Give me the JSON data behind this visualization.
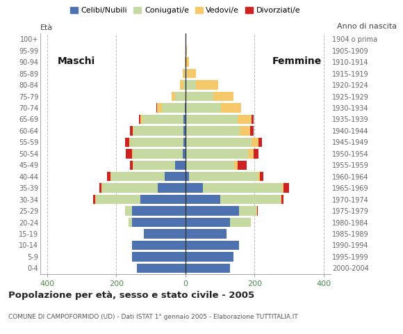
{
  "age_groups": [
    "0-4",
    "5-9",
    "10-14",
    "15-19",
    "20-24",
    "25-29",
    "30-34",
    "35-39",
    "40-44",
    "45-49",
    "50-54",
    "55-59",
    "60-64",
    "65-69",
    "70-74",
    "75-79",
    "80-84",
    "85-89",
    "90-94",
    "95-99",
    "100+"
  ],
  "birth_years": [
    "2000-2004",
    "1995-1999",
    "1990-1994",
    "1985-1989",
    "1980-1984",
    "1975-1979",
    "1970-1974",
    "1965-1969",
    "1960-1964",
    "1955-1959",
    "1950-1954",
    "1945-1949",
    "1940-1944",
    "1935-1939",
    "1930-1934",
    "1925-1929",
    "1920-1924",
    "1915-1919",
    "1910-1914",
    "1905-1909",
    "1904 o prima"
  ],
  "male": {
    "celibe": [
      140,
      155,
      155,
      120,
      155,
      155,
      130,
      80,
      60,
      30,
      8,
      5,
      5,
      5,
      2,
      0,
      0,
      0,
      0,
      0,
      0
    ],
    "coniugato": [
      0,
      0,
      0,
      0,
      10,
      20,
      130,
      160,
      155,
      120,
      145,
      155,
      145,
      120,
      65,
      30,
      5,
      2,
      0,
      0,
      0
    ],
    "vedovo": [
      0,
      0,
      0,
      0,
      0,
      0,
      2,
      2,
      2,
      2,
      2,
      2,
      3,
      5,
      15,
      10,
      10,
      5,
      2,
      0,
      0
    ],
    "divorziato": [
      0,
      0,
      0,
      0,
      0,
      0,
      5,
      8,
      10,
      8,
      18,
      12,
      8,
      5,
      2,
      0,
      0,
      0,
      0,
      0,
      0
    ]
  },
  "female": {
    "nubile": [
      130,
      140,
      155,
      120,
      130,
      155,
      100,
      50,
      10,
      2,
      2,
      2,
      2,
      2,
      2,
      0,
      0,
      0,
      0,
      0,
      0
    ],
    "coniugata": [
      0,
      0,
      0,
      0,
      60,
      50,
      175,
      230,
      200,
      140,
      180,
      190,
      155,
      150,
      100,
      80,
      30,
      5,
      0,
      0,
      0
    ],
    "vedova": [
      0,
      0,
      0,
      0,
      0,
      2,
      2,
      5,
      5,
      10,
      15,
      20,
      30,
      40,
      60,
      60,
      65,
      25,
      10,
      5,
      0
    ],
    "divorziata": [
      0,
      0,
      0,
      0,
      0,
      2,
      8,
      15,
      10,
      25,
      15,
      10,
      10,
      5,
      0,
      0,
      0,
      0,
      0,
      0,
      0
    ]
  },
  "colors": {
    "celibe_nubile": "#4e72b0",
    "coniugato": "#c5d9a0",
    "vedovo": "#f5c96a",
    "divorziato": "#cc2222"
  },
  "xlim": 420,
  "title": "Popolazione per età, sesso e stato civile - 2005",
  "subtitle": "COMUNE DI CAMPOFORMIDO (UD) - Dati ISTAT 1° gennaio 2005 - Elaborazione TUTTITALIA.IT",
  "legend_labels": [
    "Celibi/Nubili",
    "Coniugati/e",
    "Vedovi/e",
    "Divorziati/e"
  ],
  "label_eta": "Età",
  "label_anno": "Anno di nascita",
  "label_maschi": "Maschi",
  "label_femmine": "Femmine",
  "bg_color": "#ffffff",
  "grid_color": "#bbbbbb",
  "tick_color_x": "#4a8a4a",
  "tick_color_y": "#666666",
  "border_color": "#aaaaaa"
}
